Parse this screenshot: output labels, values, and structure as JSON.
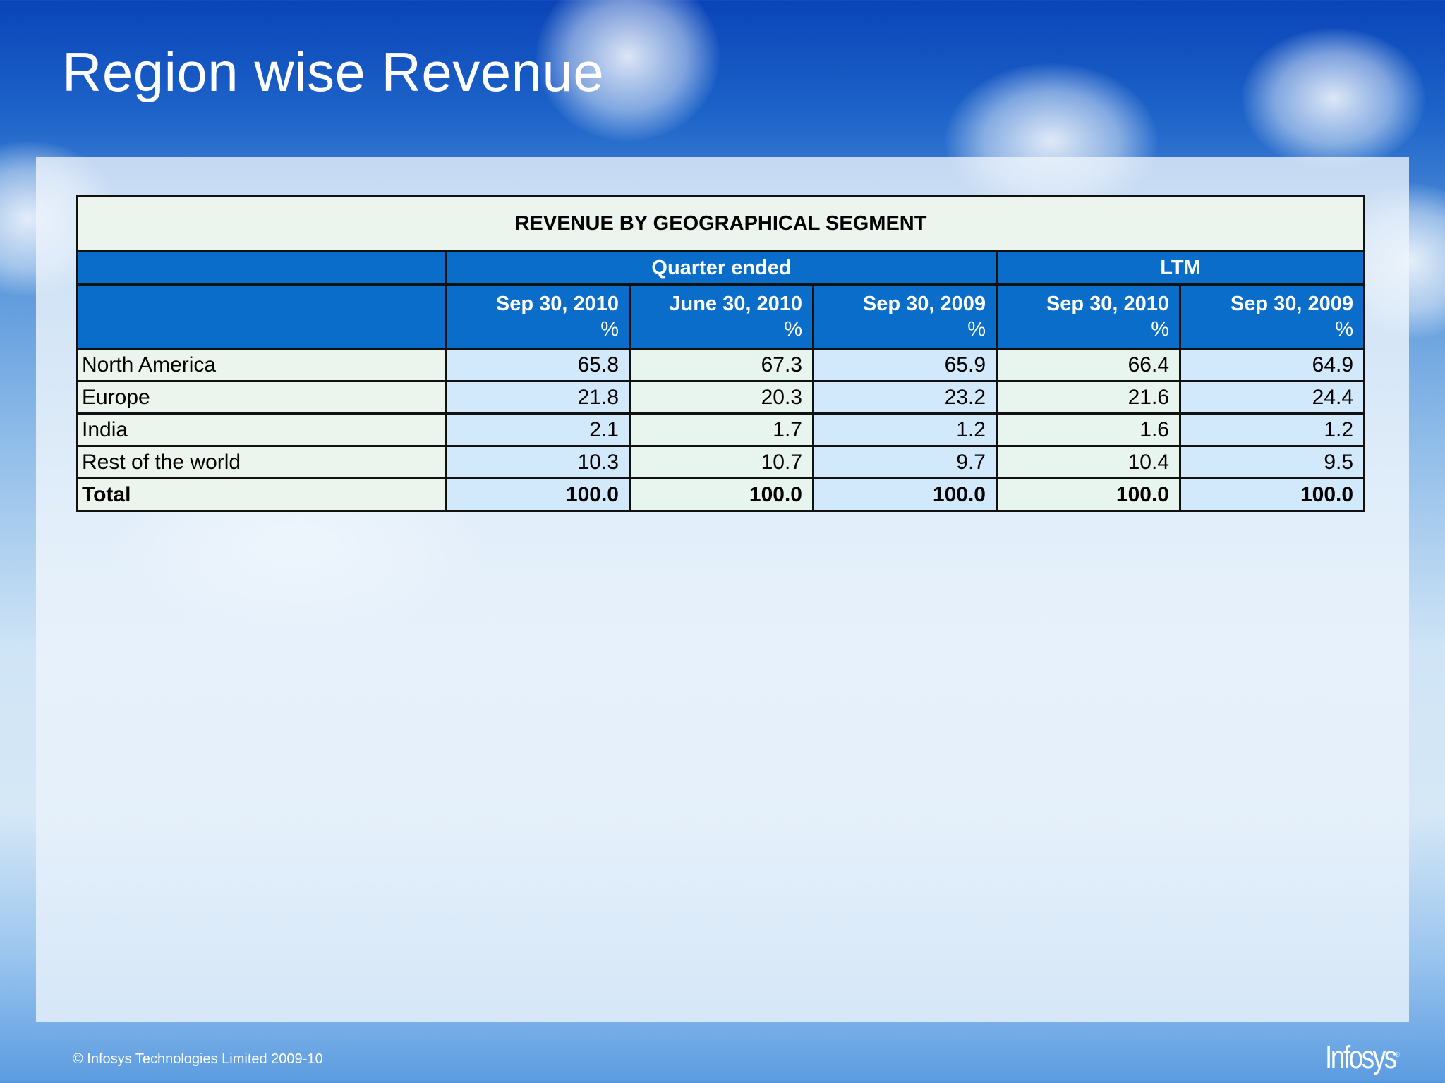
{
  "slide": {
    "title": "Region wise Revenue",
    "footer": "© Infosys Technologies Limited 2009-10",
    "logo": "Infosys"
  },
  "table": {
    "title": "REVENUE BY GEOGRAPHICAL SEGMENT",
    "groups": [
      "Quarter ended",
      "LTM"
    ],
    "columns": [
      {
        "date": "Sep 30, 2010",
        "unit": "%"
      },
      {
        "date": "June 30, 2010",
        "unit": "%"
      },
      {
        "date": "Sep 30, 2009",
        "unit": "%"
      },
      {
        "date": "Sep 30, 2010",
        "unit": "%"
      },
      {
        "date": "Sep 30, 2009",
        "unit": "%"
      }
    ],
    "rows": [
      {
        "label": "North America",
        "values": [
          "65.8",
          "67.3",
          "65.9",
          "66.4",
          "64.9"
        ]
      },
      {
        "label": "Europe",
        "values": [
          "21.8",
          "20.3",
          "23.2",
          "21.6",
          "24.4"
        ]
      },
      {
        "label": "India",
        "values": [
          "2.1",
          "1.7",
          "1.2",
          "1.6",
          "1.2"
        ]
      },
      {
        "label": "Rest of the world",
        "values": [
          "10.3",
          "10.7",
          "9.7",
          "10.4",
          "9.5"
        ]
      },
      {
        "label": "Total",
        "values": [
          "100.0",
          "100.0",
          "100.0",
          "100.0",
          "100.0"
        ]
      }
    ]
  }
}
